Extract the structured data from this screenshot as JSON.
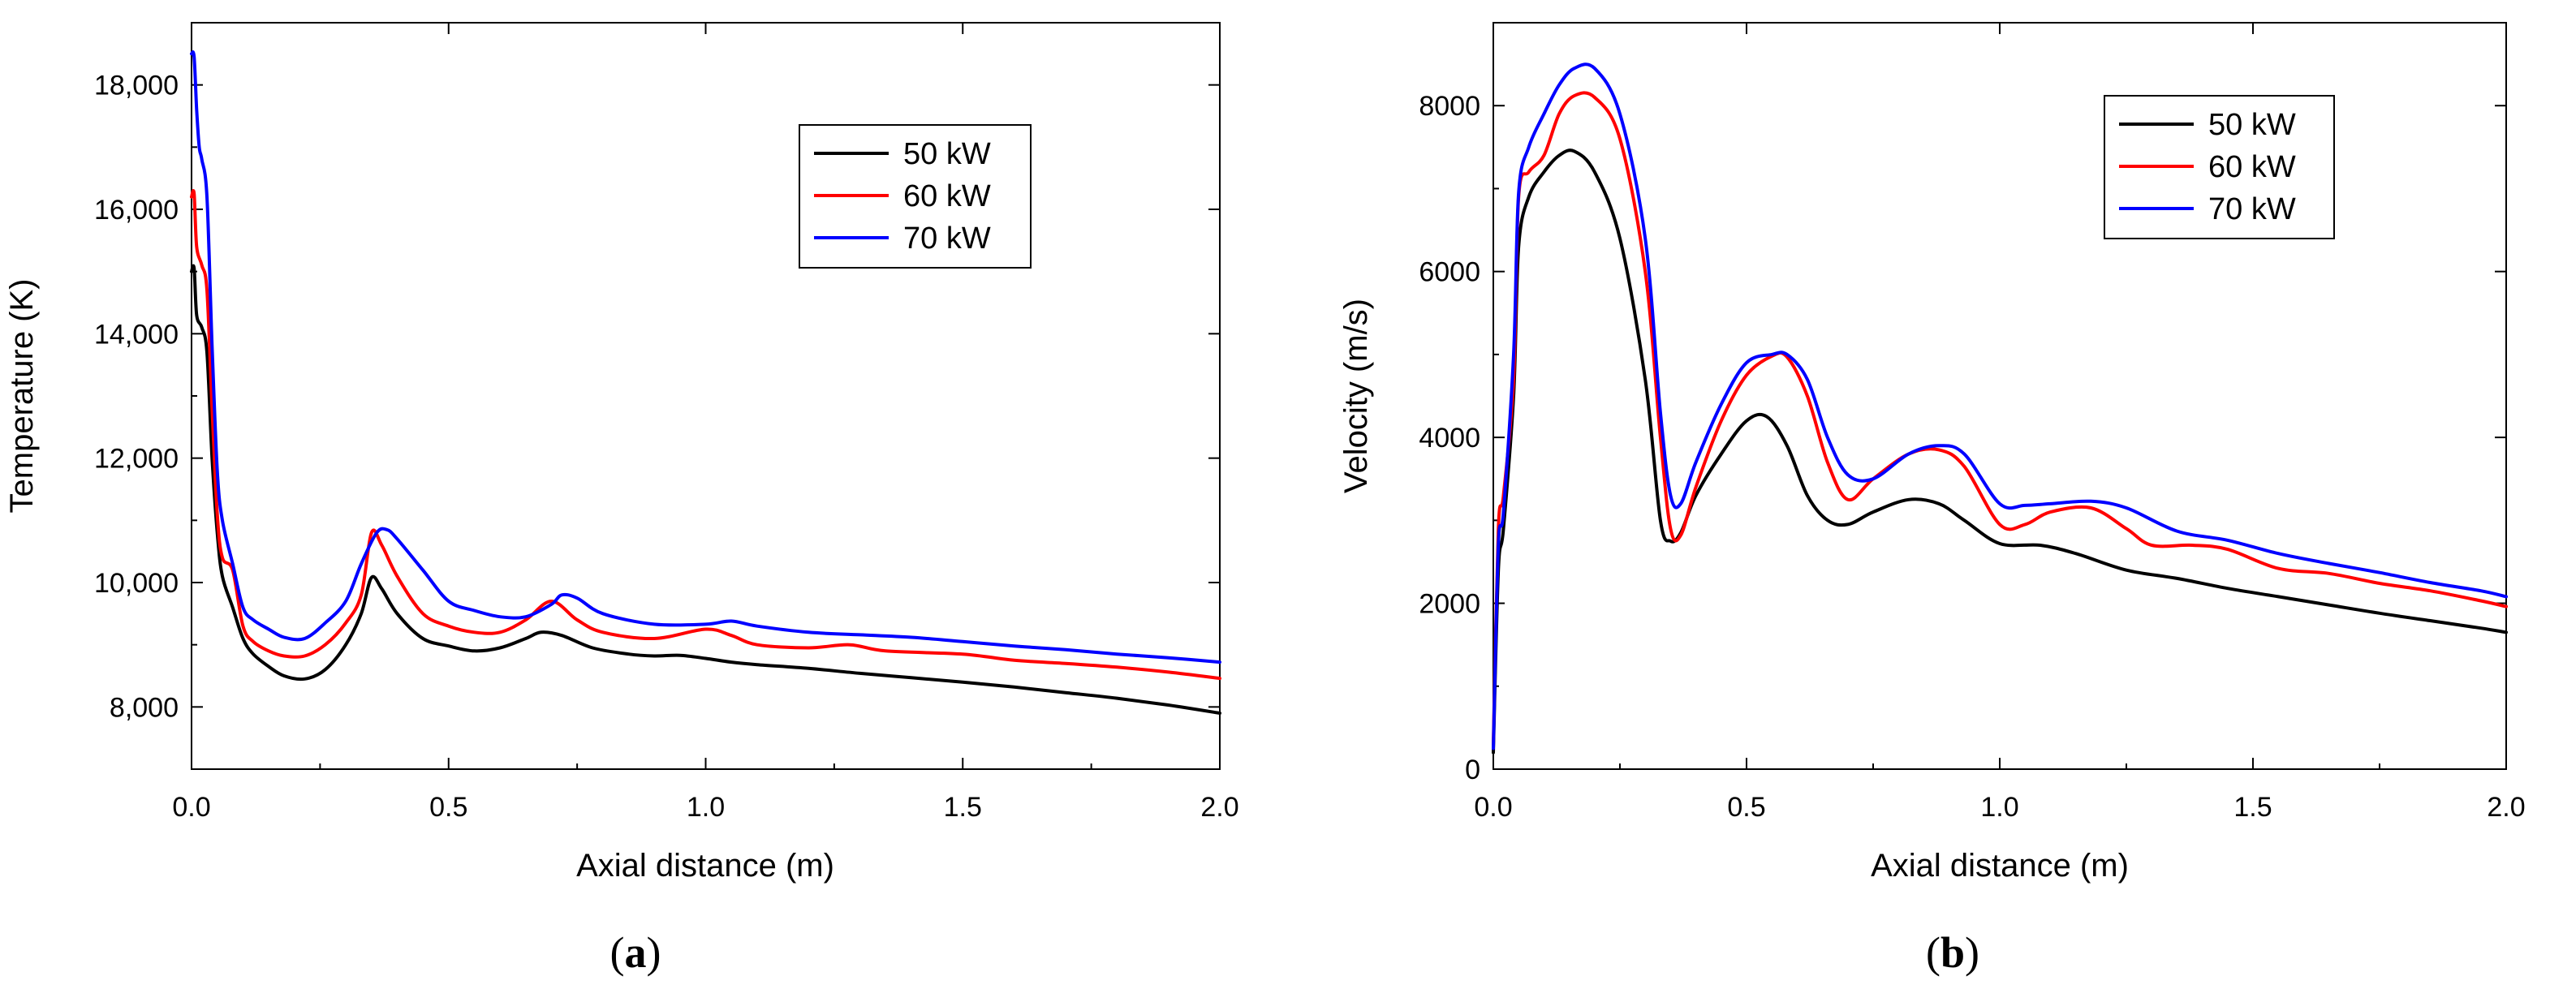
{
  "chart_data": [
    {
      "type": "line",
      "panel_label": "a",
      "xlabel": "Axial distance (m)",
      "ylabel": "Temperature (K)",
      "xlim": [
        0,
        2.0
      ],
      "ylim": [
        7000,
        19000
      ],
      "xticks": [
        {
          "value": 0.0,
          "label": "0.0"
        },
        {
          "value": 0.5,
          "label": "0.5"
        },
        {
          "value": 1.0,
          "label": "1.0"
        },
        {
          "value": 1.5,
          "label": "1.5"
        },
        {
          "value": 2.0,
          "label": "2.0"
        }
      ],
      "yticks": [
        {
          "value": 8000,
          "label": "8,000"
        },
        {
          "value": 10000,
          "label": "10,000"
        },
        {
          "value": 12000,
          "label": "12,000"
        },
        {
          "value": 14000,
          "label": "14,000"
        },
        {
          "value": 16000,
          "label": "16,000"
        },
        {
          "value": 18000,
          "label": "18,000"
        }
      ],
      "legend_position": "top-right",
      "series": [
        {
          "name": "50 kW",
          "color": "#000000",
          "x": [
            0,
            0.005,
            0.01,
            0.02,
            0.03,
            0.04,
            0.05,
            0.06,
            0.08,
            0.1,
            0.12,
            0.15,
            0.18,
            0.22,
            0.26,
            0.3,
            0.33,
            0.35,
            0.37,
            0.4,
            0.45,
            0.5,
            0.55,
            0.6,
            0.65,
            0.68,
            0.72,
            0.78,
            0.85,
            0.9,
            0.95,
            1.0,
            1.05,
            1.1,
            1.2,
            1.3,
            1.4,
            1.5,
            1.6,
            1.7,
            1.8,
            1.9,
            2.0
          ],
          "y": [
            15000,
            15050,
            14300,
            14100,
            13700,
            12000,
            10800,
            10100,
            9600,
            9100,
            8850,
            8650,
            8500,
            8450,
            8600,
            9000,
            9500,
            10080,
            9900,
            9500,
            9100,
            8980,
            8900,
            8950,
            9100,
            9200,
            9150,
            8950,
            8850,
            8820,
            8830,
            8780,
            8720,
            8680,
            8620,
            8540,
            8470,
            8400,
            8320,
            8230,
            8140,
            8030,
            7900
          ]
        },
        {
          "name": "60 kW",
          "color": "#ff0000",
          "x": [
            0,
            0.005,
            0.01,
            0.02,
            0.03,
            0.04,
            0.05,
            0.06,
            0.08,
            0.1,
            0.12,
            0.15,
            0.18,
            0.22,
            0.26,
            0.3,
            0.33,
            0.35,
            0.37,
            0.4,
            0.45,
            0.5,
            0.55,
            0.6,
            0.65,
            0.7,
            0.75,
            0.8,
            0.9,
            1.0,
            1.05,
            1.1,
            1.2,
            1.28,
            1.35,
            1.5,
            1.6,
            1.7,
            1.8,
            1.9,
            2.0
          ],
          "y": [
            16200,
            16250,
            15400,
            15100,
            14700,
            12800,
            11100,
            10400,
            10200,
            9300,
            9050,
            8900,
            8820,
            8820,
            9000,
            9350,
            9800,
            10800,
            10600,
            10100,
            9500,
            9300,
            9200,
            9200,
            9400,
            9700,
            9400,
            9200,
            9100,
            9250,
            9150,
            9000,
            8950,
            9000,
            8900,
            8850,
            8750,
            8700,
            8640,
            8560,
            8460
          ]
        },
        {
          "name": "70 kW",
          "color": "#0000ff",
          "x": [
            0,
            0.005,
            0.01,
            0.015,
            0.02,
            0.03,
            0.04,
            0.05,
            0.06,
            0.08,
            0.1,
            0.12,
            0.15,
            0.18,
            0.22,
            0.26,
            0.3,
            0.33,
            0.36,
            0.38,
            0.4,
            0.45,
            0.5,
            0.55,
            0.6,
            0.65,
            0.7,
            0.72,
            0.75,
            0.8,
            0.9,
            1.0,
            1.05,
            1.1,
            1.2,
            1.3,
            1.4,
            1.5,
            1.6,
            1.7,
            1.8,
            1.9,
            2.0
          ],
          "y": [
            18500,
            18450,
            17600,
            17000,
            16800,
            16200,
            13800,
            11800,
            11000,
            10300,
            9600,
            9400,
            9250,
            9120,
            9100,
            9350,
            9700,
            10300,
            10800,
            10850,
            10700,
            10200,
            9700,
            9550,
            9450,
            9450,
            9650,
            9800,
            9750,
            9500,
            9330,
            9330,
            9380,
            9300,
            9200,
            9160,
            9120,
            9050,
            8980,
            8920,
            8850,
            8790,
            8720
          ]
        }
      ]
    },
    {
      "type": "line",
      "panel_label": "b",
      "xlabel": "Axial distance (m)",
      "ylabel": "Velocity (m/s)",
      "xlim": [
        0,
        2.0
      ],
      "ylim": [
        0,
        9000
      ],
      "xticks": [
        {
          "value": 0.0,
          "label": "0.0"
        },
        {
          "value": 0.5,
          "label": "0.5"
        },
        {
          "value": 1.0,
          "label": "1.0"
        },
        {
          "value": 1.5,
          "label": "1.5"
        },
        {
          "value": 2.0,
          "label": "2.0"
        }
      ],
      "yticks": [
        {
          "value": 0,
          "label": "0"
        },
        {
          "value": 2000,
          "label": "2000"
        },
        {
          "value": 4000,
          "label": "4000"
        },
        {
          "value": 6000,
          "label": "6000"
        },
        {
          "value": 8000,
          "label": "8000"
        }
      ],
      "legend_position": "top-right",
      "series": [
        {
          "name": "50 kW",
          "color": "#000000",
          "x": [
            0,
            0.01,
            0.02,
            0.04,
            0.05,
            0.07,
            0.1,
            0.13,
            0.16,
            0.2,
            0.25,
            0.3,
            0.33,
            0.35,
            0.37,
            0.4,
            0.45,
            0.5,
            0.54,
            0.58,
            0.62,
            0.66,
            0.7,
            0.75,
            0.82,
            0.88,
            0.93,
            1.0,
            1.08,
            1.15,
            1.25,
            1.35,
            1.45,
            1.55,
            1.65,
            1.75,
            1.85,
            1.95,
            2.0
          ],
          "y": [
            200,
            2400,
            2900,
            4500,
            6300,
            6900,
            7200,
            7400,
            7450,
            7200,
            6400,
            4700,
            3000,
            2750,
            2850,
            3300,
            3800,
            4200,
            4250,
            3900,
            3300,
            3000,
            2950,
            3100,
            3250,
            3200,
            3000,
            2720,
            2700,
            2600,
            2400,
            2300,
            2180,
            2080,
            1980,
            1880,
            1790,
            1700,
            1650
          ]
        },
        {
          "name": "60 kW",
          "color": "#ff0000",
          "x": [
            0,
            0.01,
            0.02,
            0.04,
            0.05,
            0.07,
            0.1,
            0.13,
            0.16,
            0.2,
            0.25,
            0.3,
            0.33,
            0.35,
            0.37,
            0.4,
            0.45,
            0.5,
            0.55,
            0.58,
            0.62,
            0.66,
            0.7,
            0.75,
            0.82,
            0.88,
            0.93,
            1.0,
            1.05,
            1.1,
            1.18,
            1.25,
            1.3,
            1.38,
            1.45,
            1.55,
            1.65,
            1.75,
            1.85,
            1.95,
            2.0
          ],
          "y": [
            300,
            2900,
            3300,
            4700,
            6900,
            7200,
            7400,
            7900,
            8120,
            8100,
            7600,
            6000,
            4000,
            2900,
            2820,
            3400,
            4200,
            4750,
            4980,
            4970,
            4500,
            3700,
            3250,
            3500,
            3800,
            3850,
            3650,
            2950,
            2950,
            3100,
            3150,
            2900,
            2700,
            2700,
            2650,
            2420,
            2360,
            2240,
            2150,
            2030,
            1960
          ]
        },
        {
          "name": "70 kW",
          "color": "#0000ff",
          "x": [
            0,
            0.01,
            0.02,
            0.04,
            0.05,
            0.07,
            0.1,
            0.13,
            0.16,
            0.2,
            0.25,
            0.3,
            0.33,
            0.35,
            0.37,
            0.4,
            0.45,
            0.5,
            0.55,
            0.58,
            0.62,
            0.66,
            0.7,
            0.75,
            0.82,
            0.88,
            0.93,
            1.0,
            1.05,
            1.1,
            1.18,
            1.25,
            1.35,
            1.45,
            1.55,
            1.65,
            1.75,
            1.85,
            1.95,
            2.0
          ],
          "y": [
            250,
            2700,
            3100,
            5000,
            6950,
            7500,
            7900,
            8250,
            8450,
            8450,
            7900,
            6400,
            4300,
            3300,
            3200,
            3700,
            4400,
            4900,
            5000,
            5000,
            4700,
            4000,
            3550,
            3500,
            3800,
            3900,
            3800,
            3200,
            3180,
            3200,
            3230,
            3150,
            2870,
            2760,
            2600,
            2480,
            2370,
            2250,
            2150,
            2080
          ]
        }
      ]
    }
  ]
}
